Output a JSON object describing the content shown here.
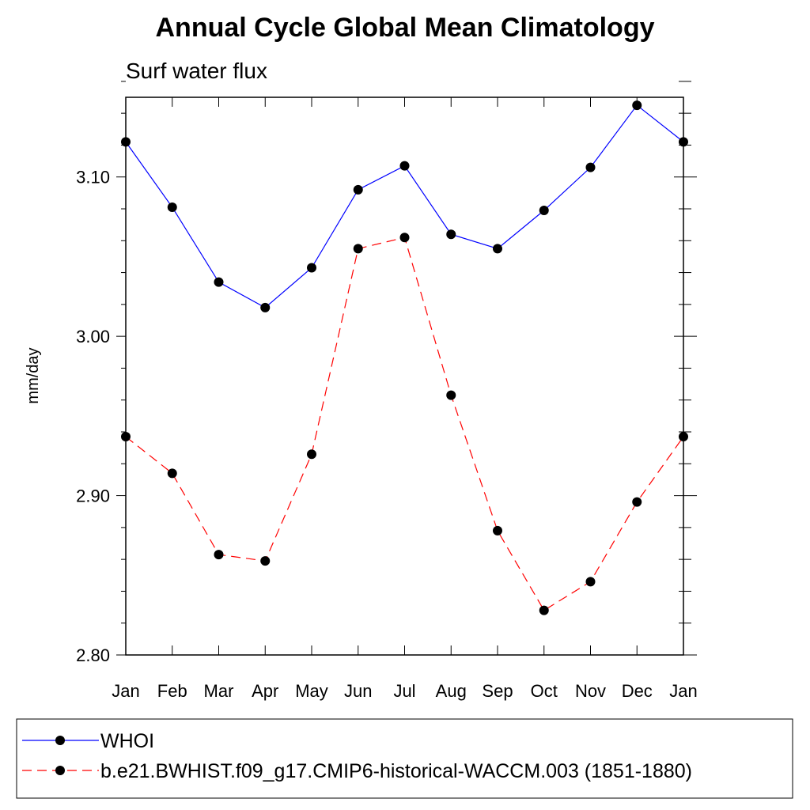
{
  "chart_data": {
    "type": "line",
    "title": "Annual Cycle Global Mean Climatology",
    "subtitle": "Surf water flux",
    "ylabel": "mm/day",
    "xlabel": "",
    "categories": [
      "Jan",
      "Feb",
      "Mar",
      "Apr",
      "May",
      "Jun",
      "Jul",
      "Aug",
      "Sep",
      "Oct",
      "Nov",
      "Dec",
      "Jan"
    ],
    "ylim": [
      2.8,
      3.15
    ],
    "yticks": [
      2.8,
      2.9,
      3.0,
      3.1
    ],
    "ytick_labels": [
      "2.80",
      "2.90",
      "3.00",
      "3.10"
    ],
    "y_minor_step": 0.02,
    "grid": false,
    "legend_position": "bottom",
    "series": [
      {
        "name": "WHOI",
        "color": "#0000ff",
        "line_style": "solid",
        "marker": "filled-circle",
        "values": [
          3.122,
          3.081,
          3.034,
          3.018,
          3.043,
          3.092,
          3.107,
          3.064,
          3.055,
          3.079,
          3.106,
          3.145,
          3.122
        ]
      },
      {
        "name": "b.e21.BWHIST.f09_g17.CMIP6-historical-WACCM.003 (1851-1880)",
        "color": "#ff0000",
        "line_style": "dashed",
        "marker": "filled-circle",
        "values": [
          2.937,
          2.914,
          2.863,
          2.859,
          2.926,
          3.055,
          3.062,
          2.963,
          2.878,
          2.828,
          2.846,
          2.896,
          2.937
        ]
      }
    ]
  }
}
